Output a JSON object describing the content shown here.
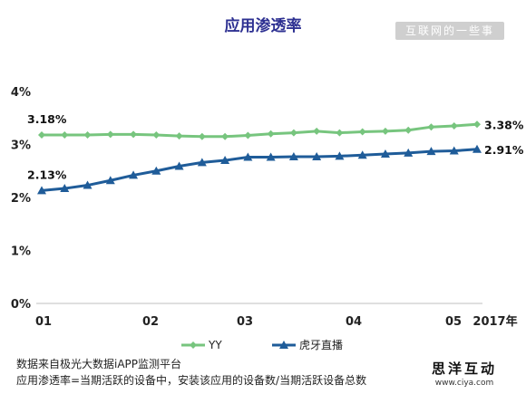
{
  "title": "应用渗透率",
  "watermark": "互联网的一些事",
  "logo": {
    "name": "思洋互动",
    "url": "www.ciya.com"
  },
  "footer": {
    "source": "数据来自极光大数据iAPP监测平台",
    "definition": "应用渗透率=当期活跃的设备中，安装该应用的设备数/当期活跃设备总数"
  },
  "chart_data": {
    "type": "line",
    "title": "应用渗透率",
    "x_tick_labels": [
      "01",
      "02",
      "03",
      "04",
      "05",
      "2017年"
    ],
    "y_tick_labels": [
      "0%",
      "1%",
      "2%",
      "3%",
      "4%"
    ],
    "ylim": [
      0,
      4
    ],
    "y_unit": "%",
    "grid": false,
    "legend_position": "bottom",
    "series": [
      {
        "name": "YY",
        "color": "#77c57e",
        "marker": "diamond",
        "values": [
          3.18,
          3.18,
          3.18,
          3.19,
          3.19,
          3.18,
          3.16,
          3.15,
          3.15,
          3.17,
          3.2,
          3.22,
          3.25,
          3.22,
          3.24,
          3.25,
          3.27,
          3.33,
          3.35,
          3.38
        ],
        "start_label": "3.18%",
        "end_label": "3.38%"
      },
      {
        "name": "虎牙直播",
        "color": "#1f5c99",
        "marker": "triangle",
        "values": [
          2.13,
          2.17,
          2.23,
          2.32,
          2.42,
          2.5,
          2.59,
          2.66,
          2.7,
          2.76,
          2.76,
          2.77,
          2.77,
          2.78,
          2.8,
          2.82,
          2.84,
          2.87,
          2.88,
          2.91
        ],
        "start_label": "2.13%",
        "end_label": "2.91%"
      }
    ]
  }
}
